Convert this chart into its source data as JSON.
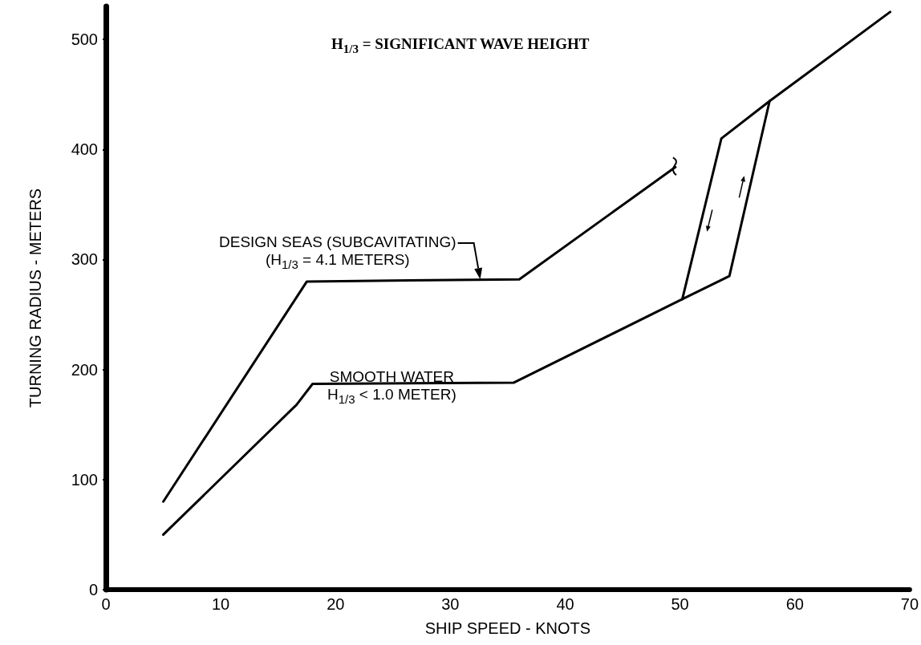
{
  "chart_data": {
    "type": "line",
    "xlabel": "SHIP SPEED - KNOTS",
    "ylabel": "TURNING RADIUS - METERS",
    "xlim": [
      0,
      70
    ],
    "ylim": [
      0,
      530
    ],
    "xticks": [
      0,
      10,
      20,
      30,
      40,
      50,
      60,
      70
    ],
    "yticks": [
      0,
      100,
      200,
      300,
      400,
      500
    ],
    "grid": false,
    "marker": "none",
    "line_style": "solid",
    "series": [
      {
        "color": "#000000",
        "x": [
          5,
          17.5,
          36,
          49.6
        ],
        "values": [
          80,
          280,
          282,
          384
        ]
      },
      {
        "color": "#000000",
        "x": [
          5,
          16.6,
          18,
          35.5,
          50.2,
          54.3,
          57.8,
          68.3
        ],
        "values": [
          50,
          168,
          187,
          188,
          264,
          285,
          444,
          525
        ]
      },
      {
        "color": "#000000",
        "x": [
          57.8,
          53.6,
          50.2
        ],
        "values": [
          444,
          410,
          264
        ]
      }
    ],
    "annotations": [
      "H$_{1/3}$ = SIGNIFICANT WAVE HEIGHT",
      {
        "text": "DESIGN SEAS (SUBCAVITATING)\n(H$_{1/3}$ = 4.1 METERS)",
        "x": 32.6,
        "y": 282
      },
      "SMOOTH WATER\nH$_{1/3}$ < 1.0 METER)"
    ]
  }
}
